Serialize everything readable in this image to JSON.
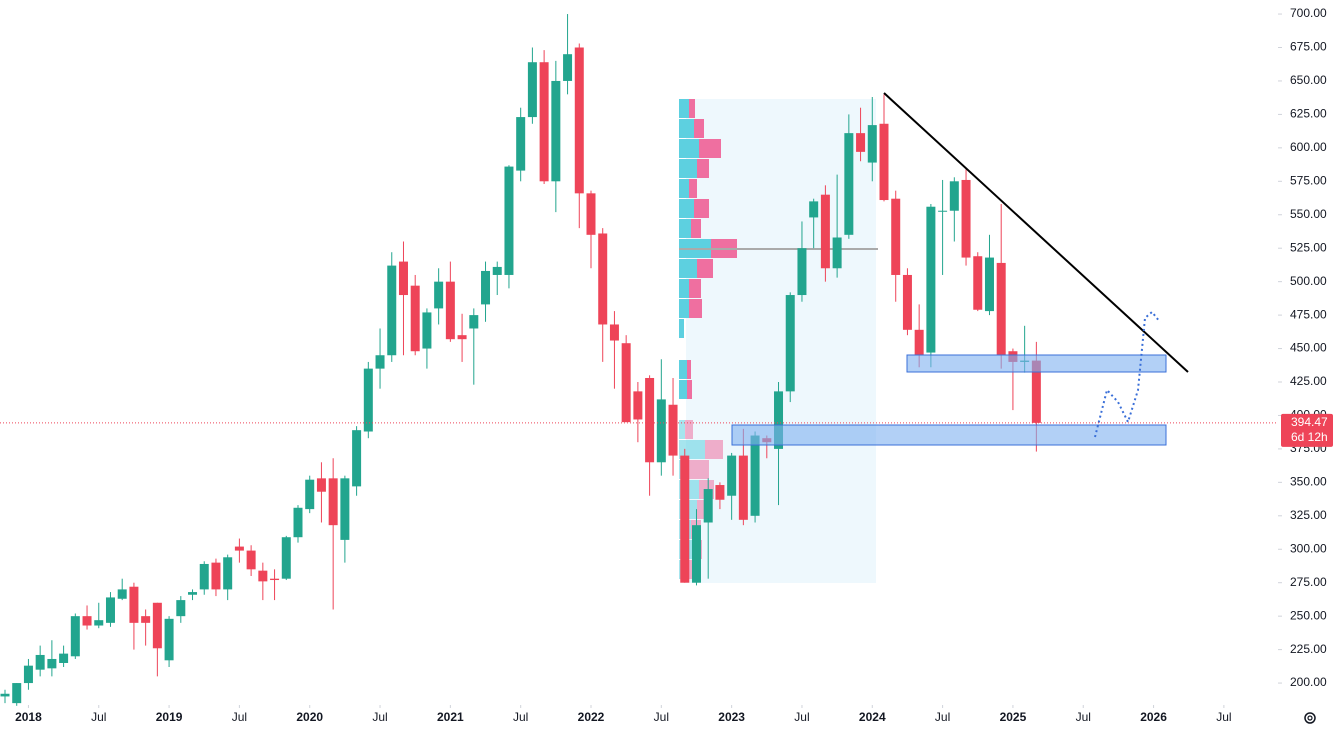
{
  "chart_data": {
    "type": "candlestick",
    "x": [
      "2017-11",
      "2017-12",
      "2018-01",
      "2018-02",
      "2018-03",
      "2018-04",
      "2018-05",
      "2018-06",
      "2018-07",
      "2018-08",
      "2018-09",
      "2018-10",
      "2018-11",
      "2018-12",
      "2019-01",
      "2019-02",
      "2019-03",
      "2019-04",
      "2019-05",
      "2019-06",
      "2019-07",
      "2019-08",
      "2019-09",
      "2019-10",
      "2019-11",
      "2019-12",
      "2020-01",
      "2020-02",
      "2020-03",
      "2020-04",
      "2020-05",
      "2020-06",
      "2020-07",
      "2020-08",
      "2020-09",
      "2020-10",
      "2020-11",
      "2020-12",
      "2021-01",
      "2021-02",
      "2021-03",
      "2021-04",
      "2021-05",
      "2021-06",
      "2021-07",
      "2021-08",
      "2021-09",
      "2021-10",
      "2021-11",
      "2021-12",
      "2022-01",
      "2022-02",
      "2022-03",
      "2022-04",
      "2022-05",
      "2022-06",
      "2022-07",
      "2022-08",
      "2022-09",
      "2022-10",
      "2022-11",
      "2022-12",
      "2023-01",
      "2023-02",
      "2023-03",
      "2023-04",
      "2023-05",
      "2023-06",
      "2023-07",
      "2023-08",
      "2023-09",
      "2023-10",
      "2023-11",
      "2023-12",
      "2024-01",
      "2024-02",
      "2024-03",
      "2024-04",
      "2024-05",
      "2024-06",
      "2024-07",
      "2024-08",
      "2024-09",
      "2024-10",
      "2024-11",
      "2024-12",
      "2025-01",
      "2025-02",
      "2025-03"
    ],
    "open": [
      190,
      185,
      200,
      210,
      211,
      215,
      220,
      250,
      243,
      245,
      263,
      272,
      250,
      260,
      217,
      250,
      266,
      270,
      290,
      270,
      302,
      299,
      284,
      278,
      278,
      309,
      330,
      353,
      353,
      307,
      347,
      388,
      435,
      445,
      515,
      497,
      450,
      480,
      500,
      460,
      465,
      483,
      505,
      505,
      583,
      623,
      664,
      575,
      650,
      675,
      566,
      536,
      468,
      454,
      418,
      428,
      365,
      408,
      370,
      275,
      320,
      348,
      340,
      370,
      325,
      383,
      375,
      418,
      490,
      548,
      565,
      510,
      535,
      611,
      589,
      618,
      562,
      505,
      464,
      447,
      553,
      553,
      576,
      519,
      478,
      514,
      448,
      440,
      441
    ],
    "high": [
      195,
      200,
      218,
      228,
      232,
      228,
      252,
      258,
      260,
      268,
      278,
      275,
      255,
      260,
      250,
      265,
      270,
      291,
      293,
      296,
      308,
      303,
      290,
      285,
      310,
      333,
      355,
      365,
      368,
      355,
      392,
      440,
      465,
      522,
      530,
      505,
      480,
      510,
      515,
      476,
      480,
      515,
      515,
      587,
      630,
      675,
      673,
      665,
      700,
      678,
      568,
      540,
      478,
      460,
      425,
      430,
      442,
      428,
      375,
      330,
      353,
      350,
      372,
      390,
      388,
      385,
      425,
      492,
      545,
      562,
      572,
      580,
      625,
      630,
      638,
      640,
      568,
      510,
      483,
      558,
      576,
      578,
      584,
      522,
      535,
      558,
      450,
      467,
      455
    ],
    "low": [
      185,
      183,
      195,
      205,
      205,
      212,
      218,
      240,
      241,
      242,
      262,
      225,
      228,
      205,
      212,
      245,
      262,
      266,
      265,
      262,
      290,
      280,
      262,
      262,
      277,
      305,
      327,
      320,
      255,
      290,
      340,
      383,
      420,
      440,
      445,
      445,
      435,
      468,
      455,
      440,
      423,
      470,
      490,
      495,
      575,
      618,
      573,
      552,
      640,
      540,
      510,
      440,
      420,
      395,
      380,
      340,
      355,
      355,
      275,
      273,
      278,
      330,
      322,
      318,
      320,
      368,
      333,
      410,
      485,
      525,
      500,
      503,
      532,
      590,
      575,
      560,
      485,
      460,
      436,
      436,
      505,
      530,
      512,
      478,
      475,
      435,
      404,
      432,
      373
    ],
    "close": [
      192,
      200,
      213,
      221,
      218,
      222,
      250,
      243,
      247,
      264,
      270,
      245,
      245,
      226,
      248,
      262,
      268,
      289,
      270,
      294,
      299,
      285,
      276,
      277,
      309,
      331,
      352,
      343,
      318,
      353,
      389,
      435,
      445,
      512,
      490,
      448,
      477,
      500,
      457,
      457,
      475,
      508,
      511,
      586,
      623,
      664,
      575,
      650,
      670,
      566,
      535,
      468,
      456,
      395,
      397,
      365,
      412,
      370,
      275,
      318,
      345,
      337,
      370,
      322,
      385,
      380,
      418,
      490,
      525,
      560,
      510,
      533,
      611,
      597,
      617,
      561,
      505,
      464,
      445,
      556,
      553,
      575,
      518,
      479,
      518,
      445,
      440,
      441,
      394.47
    ],
    "countdown": "6d 12h",
    "up_color": "#22a58e",
    "down_color": "#ee4458",
    "ylim": [
      183.6,
      710.5
    ],
    "yticks": [
      {
        "value": 200,
        "label": "200.00"
      },
      {
        "value": 225,
        "label": "225.00"
      },
      {
        "value": 250,
        "label": "250.00"
      },
      {
        "value": 275,
        "label": "275.00"
      },
      {
        "value": 300,
        "label": "300.00"
      },
      {
        "value": 325,
        "label": "325.00"
      },
      {
        "value": 350,
        "label": "350.00"
      },
      {
        "value": 375,
        "label": "375.00"
      },
      {
        "value": 400,
        "label": "400.00"
      },
      {
        "value": 425,
        "label": "425.00"
      },
      {
        "value": 450,
        "label": "450.00"
      },
      {
        "value": 475,
        "label": "475.00"
      },
      {
        "value": 500,
        "label": "500.00"
      },
      {
        "value": 525,
        "label": "525.00"
      },
      {
        "value": 550,
        "label": "550.00"
      },
      {
        "value": 575,
        "label": "575.00"
      },
      {
        "value": 600,
        "label": "600.00"
      },
      {
        "value": 625,
        "label": "625.00"
      },
      {
        "value": 650,
        "label": "650.00"
      },
      {
        "value": 675,
        "label": "675.00"
      },
      {
        "value": 700,
        "label": "700.00"
      }
    ],
    "xticks": [
      {
        "value": "2018-01",
        "label": "2018"
      },
      {
        "value": "2018-07",
        "label": "Jul"
      },
      {
        "value": "2019-01",
        "label": "2019"
      },
      {
        "value": "2019-07",
        "label": "Jul"
      },
      {
        "value": "2020-01",
        "label": "2020"
      },
      {
        "value": "2020-07",
        "label": "Jul"
      },
      {
        "value": "2021-01",
        "label": "2021"
      },
      {
        "value": "2021-07",
        "label": "Jul"
      },
      {
        "value": "2022-01",
        "label": "2022"
      },
      {
        "value": "2022-07",
        "label": "Jul"
      },
      {
        "value": "2023-01",
        "label": "2023"
      },
      {
        "value": "2023-07",
        "label": "Jul"
      },
      {
        "value": "2024-01",
        "label": "2024"
      },
      {
        "value": "2024-07",
        "label": "Jul"
      },
      {
        "value": "2025-01",
        "label": "2025"
      },
      {
        "value": "2025-07",
        "label": "Jul"
      },
      {
        "value": "2026-01",
        "label": "2026"
      },
      {
        "value": "2026-07",
        "label": "Jul"
      }
    ]
  }
}
